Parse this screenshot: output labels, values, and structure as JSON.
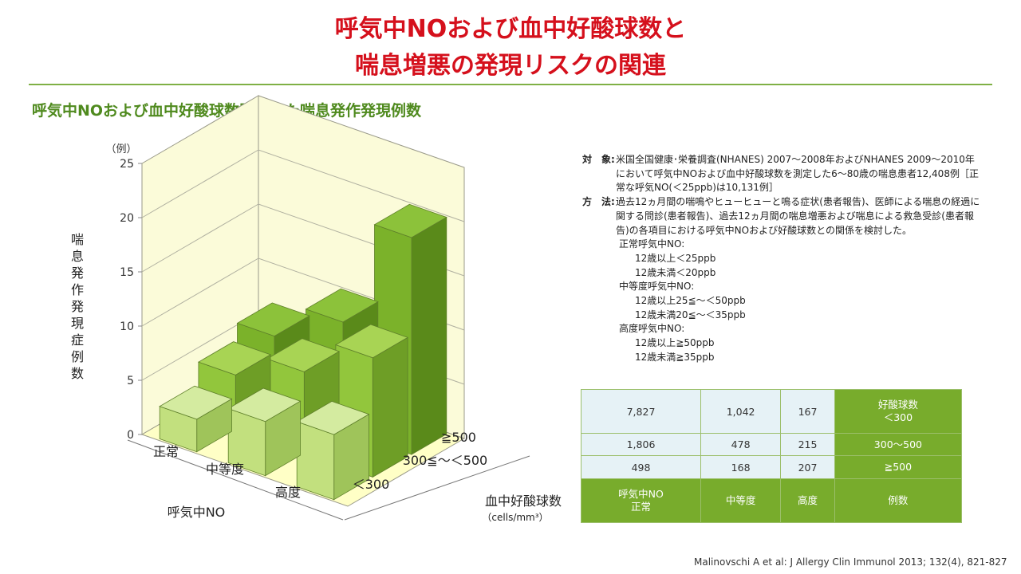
{
  "title_line1": "呼気中NOおよび血中好酸球数と",
  "title_line2": "喘息増悪の発現リスクの関連",
  "subtitle": "呼気中NOおよび血中好酸球数別にみた喘息発作発現例数",
  "colors": {
    "title": "#d5101c",
    "accent": "#78ac2c",
    "rule": "#7fb045",
    "table_value_bg": "#e6f2f6"
  },
  "chart_data": {
    "type": "bar",
    "subtype": "3d-bar",
    "y_unit": "（例）",
    "ylabel": "喘息発作発現症例数",
    "ylim": [
      0,
      25
    ],
    "yticks": [
      "0",
      "5",
      "10",
      "15",
      "20",
      "25"
    ],
    "x_axis_title": "呼気中NO",
    "x_categories": [
      "正常",
      "中等度",
      "高度"
    ],
    "depth_axis_title": "血中好酸球数",
    "depth_axis_unit": "（cells/mm³）",
    "depth_categories": [
      "＜300",
      "300≦～＜500",
      "≧500"
    ],
    "series": [
      {
        "name": "＜300",
        "values": [
          3,
          5,
          6
        ]
      },
      {
        "name": "300≦～＜500",
        "values": [
          5,
          7.5,
          11
        ]
      },
      {
        "name": "≧500",
        "values": [
          6.5,
          10,
          20
        ]
      }
    ],
    "grid": true
  },
  "description": {
    "subject_label": "対　象:",
    "subject_text": "米国全国健康･栄養調査(NHANES) 2007～2008年およびNHANES 2009～2010年において呼気中NOおよび血中好酸球数を測定した6～80歳の喘息患者12,408例［正常な呼気NO(＜25ppb)は10,131例］",
    "method_label": "方　法:",
    "method_text": "過去12ヵ月間の喘鳴やヒューヒューと鳴る症状(患者報告)、医師による喘息の経過に関する問診(患者報告)、過去12ヵ月間の喘息増悪および喘息による救急受診(患者報告)の各項目における呼気中NOおよび好酸球数との関係を検討した。",
    "normal_label": "正常呼気中NO:",
    "normal_items": [
      "12歳以上＜25ppb",
      "12歳未満＜20ppb"
    ],
    "moderate_label": "中等度呼気中NO:",
    "moderate_items": [
      "12歳以上25≦～＜50ppb",
      "12歳未満20≦～＜35ppb"
    ],
    "high_label": "高度呼気中NO:",
    "high_items": [
      "12歳以上≧50ppb",
      "12歳未満≧35ppb"
    ]
  },
  "table": {
    "rows": [
      {
        "values": [
          "7,827",
          "1,042",
          "167"
        ],
        "label_line1": "好酸球数",
        "label_line2": "＜300"
      },
      {
        "values": [
          "1,806",
          "478",
          "215"
        ],
        "label_line1": "300～500",
        "label_line2": ""
      },
      {
        "values": [
          "498",
          "168",
          "207"
        ],
        "label_line1": "≧500",
        "label_line2": ""
      }
    ],
    "footer": {
      "col1_line1": "呼気中NO",
      "col1_line2": "正常",
      "col2": "中等度",
      "col3": "高度",
      "col4": "例数"
    }
  },
  "citation": "Malinovschi A et al: J Allergy Clin Immunol  2013; 132(4), 821-827"
}
